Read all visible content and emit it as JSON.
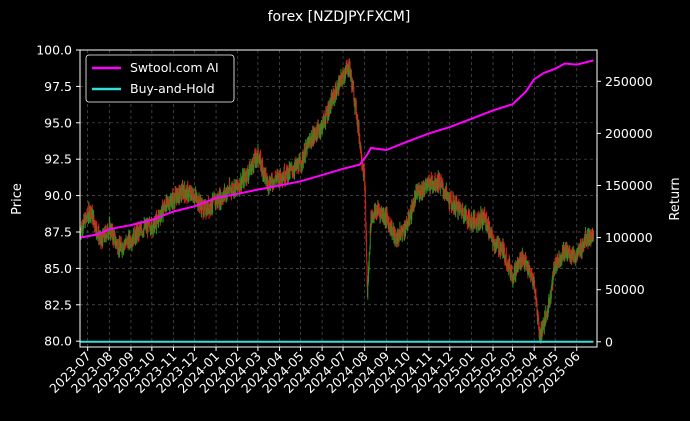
{
  "chart_data": {
    "type": "line",
    "title": "forex [NZDJPY.FXCM]",
    "ylabel": "Price",
    "y2label": "Return",
    "ylim": [
      79.6,
      100
    ],
    "y2lim": [
      -5000,
      280000
    ],
    "yticks": [
      "80.0",
      "82.5",
      "85.0",
      "87.5",
      "90.0",
      "92.5",
      "95.0",
      "97.5",
      "100.0"
    ],
    "y2ticks": [
      "0",
      "50000",
      "100000",
      "150000",
      "200000",
      "250000"
    ],
    "xticks": [
      "2023-07",
      "2023-08",
      "2023-09",
      "2023-10",
      "2023-11",
      "2023-12",
      "2024-01",
      "2024-02",
      "2024-03",
      "2024-04",
      "2024-05",
      "2024-06",
      "2024-07",
      "2024-08",
      "2024-09",
      "2024-10",
      "2024-11",
      "2024-12",
      "2025-01",
      "2025-02",
      "2025-03",
      "2025-04",
      "2025-05",
      "2025-06"
    ],
    "grid": true,
    "legend_position": "top-left",
    "price_colors": {
      "up": "#1f9a1f",
      "down": "#e02020"
    },
    "price_anchors": [
      [
        "2023-06-20",
        87.6
      ],
      [
        "2023-07-05",
        89.0
      ],
      [
        "2023-07-20",
        86.8
      ],
      [
        "2023-08-01",
        87.8
      ],
      [
        "2023-08-15",
        86.4
      ],
      [
        "2023-09-01",
        87.0
      ],
      [
        "2023-09-20",
        87.8
      ],
      [
        "2023-10-05",
        88.0
      ],
      [
        "2023-10-20",
        89.3
      ],
      [
        "2023-11-01",
        89.8
      ],
      [
        "2023-11-15",
        90.3
      ],
      [
        "2023-12-01",
        90.0
      ],
      [
        "2023-12-15",
        89.0
      ],
      [
        "2024-01-01",
        89.6
      ],
      [
        "2024-01-20",
        90.4
      ],
      [
        "2024-02-01",
        90.6
      ],
      [
        "2024-02-15",
        91.5
      ],
      [
        "2024-03-01",
        92.8
      ],
      [
        "2024-03-15",
        90.8
      ],
      [
        "2024-04-01",
        91.3
      ],
      [
        "2024-04-15",
        91.6
      ],
      [
        "2024-05-01",
        92.2
      ],
      [
        "2024-05-15",
        93.8
      ],
      [
        "2024-06-01",
        94.8
      ],
      [
        "2024-06-15",
        96.5
      ],
      [
        "2024-07-01",
        98.2
      ],
      [
        "2024-07-10",
        98.9
      ],
      [
        "2024-07-20",
        95.8
      ],
      [
        "2024-08-01",
        91.0
      ],
      [
        "2024-08-05",
        83.2
      ],
      [
        "2024-08-10",
        88.5
      ],
      [
        "2024-08-20",
        89.0
      ],
      [
        "2024-09-01",
        88.5
      ],
      [
        "2024-09-15",
        87.0
      ],
      [
        "2024-10-01",
        88.0
      ],
      [
        "2024-10-15",
        90.2
      ],
      [
        "2024-11-01",
        90.8
      ],
      [
        "2024-11-15",
        91.0
      ],
      [
        "2024-12-01",
        89.6
      ],
      [
        "2024-12-20",
        88.9
      ],
      [
        "2025-01-01",
        88.2
      ],
      [
        "2025-01-20",
        88.5
      ],
      [
        "2025-02-01",
        86.8
      ],
      [
        "2025-02-15",
        86.3
      ],
      [
        "2025-03-01",
        84.5
      ],
      [
        "2025-03-15",
        85.8
      ],
      [
        "2025-04-01",
        84.0
      ],
      [
        "2025-04-09",
        80.4
      ],
      [
        "2025-04-20",
        82.0
      ],
      [
        "2025-05-01",
        85.3
      ],
      [
        "2025-05-15",
        86.2
      ],
      [
        "2025-06-01",
        85.8
      ],
      [
        "2025-06-15",
        87.2
      ],
      [
        "2025-06-25",
        87.0
      ]
    ],
    "series": [
      {
        "name": "Swtool.com AI",
        "color": "#ff00ff",
        "axis": "right",
        "points": [
          [
            "2023-06-20",
            100000
          ],
          [
            "2023-07-15",
            103000
          ],
          [
            "2023-08-01",
            108000
          ],
          [
            "2023-09-01",
            112000
          ],
          [
            "2023-10-01",
            117000
          ],
          [
            "2023-11-01",
            125000
          ],
          [
            "2023-12-01",
            130000
          ],
          [
            "2024-01-01",
            138000
          ],
          [
            "2024-02-01",
            142000
          ],
          [
            "2024-03-01",
            146000
          ],
          [
            "2024-04-01",
            150000
          ],
          [
            "2024-05-01",
            154000
          ],
          [
            "2024-06-01",
            160000
          ],
          [
            "2024-07-01",
            166000
          ],
          [
            "2024-07-25",
            170000
          ],
          [
            "2024-08-05",
            180000
          ],
          [
            "2024-08-10",
            186000
          ],
          [
            "2024-09-01",
            184000
          ],
          [
            "2024-10-01",
            192000
          ],
          [
            "2024-11-01",
            200000
          ],
          [
            "2024-12-01",
            206000
          ],
          [
            "2025-01-01",
            214000
          ],
          [
            "2025-02-01",
            222000
          ],
          [
            "2025-03-01",
            228000
          ],
          [
            "2025-03-20",
            240000
          ],
          [
            "2025-04-01",
            252000
          ],
          [
            "2025-04-15",
            258000
          ],
          [
            "2025-05-01",
            262000
          ],
          [
            "2025-05-15",
            267000
          ],
          [
            "2025-06-01",
            266000
          ],
          [
            "2025-06-25",
            270000
          ]
        ]
      },
      {
        "name": "Buy-and-Hold",
        "color": "#33dddd",
        "axis": "right",
        "points": [
          [
            "2023-06-20",
            0
          ],
          [
            "2025-06-25",
            0
          ]
        ]
      }
    ]
  }
}
